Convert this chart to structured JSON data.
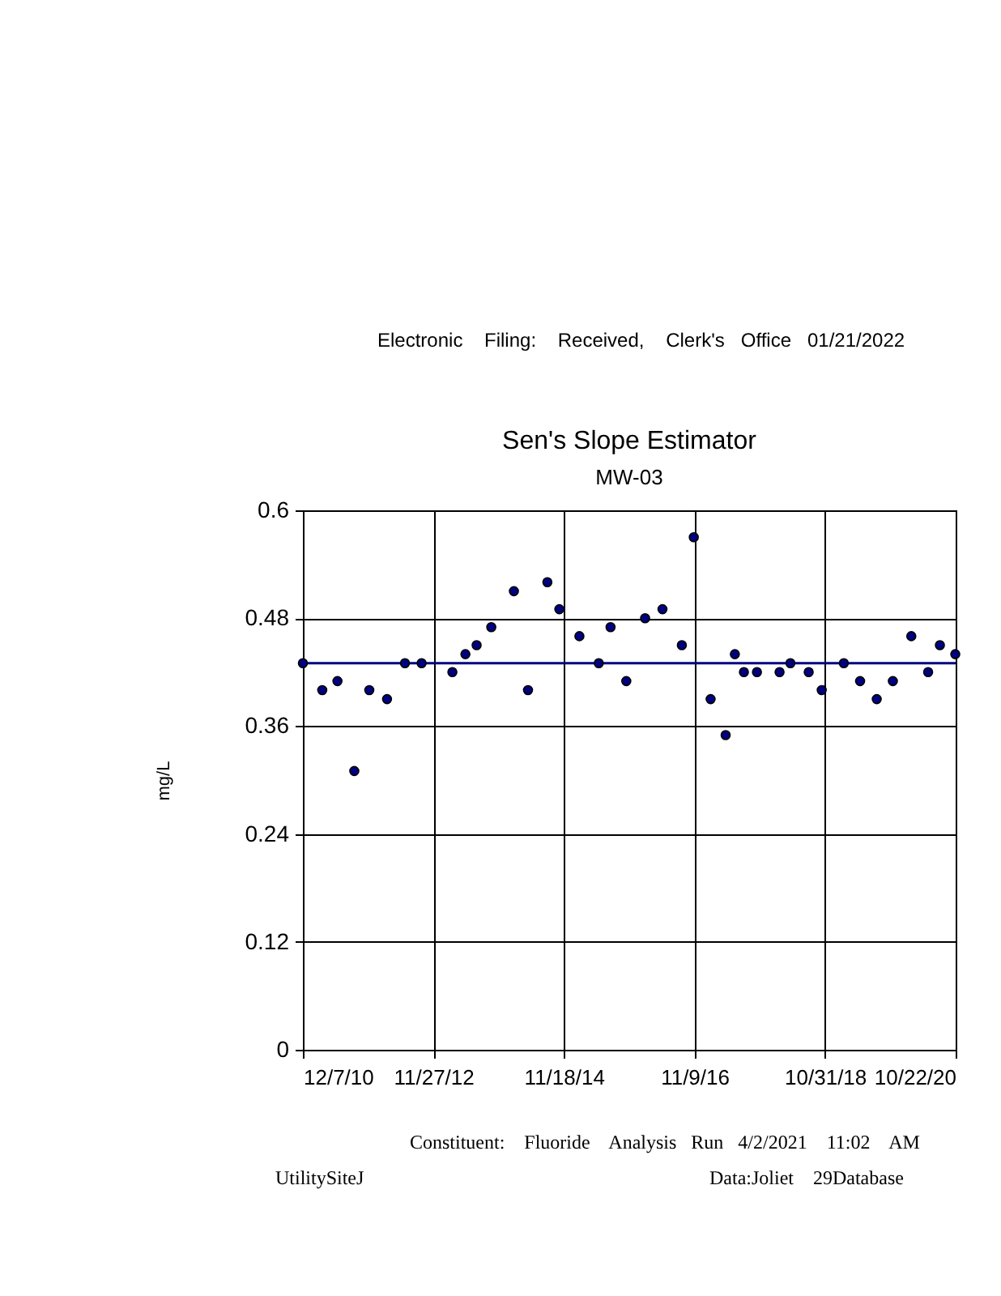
{
  "chart_data": {
    "type": "scatter",
    "title": "Sen's Slope Estimator",
    "subtitle": "MW-03",
    "ylabel": "mg/L",
    "annotations": [
      "Electronic    Filing:    Received,    Clerk's   Office   01/21/2022",
      "Constituent:    Fluoride    Analysis   Run   4/2/2021    11:02    AM",
      "UtilitySiteJ",
      "Data:Joliet    29Database"
    ],
    "xlim": [
      "2010-12-07",
      "2020-10-22"
    ],
    "xticks": [
      {
        "value": "2010-12-07",
        "label": "12/7/10"
      },
      {
        "value": "2012-11-27",
        "label": "11/27/12"
      },
      {
        "value": "2014-11-18",
        "label": "11/18/14"
      },
      {
        "value": "2016-11-09",
        "label": "11/9/16"
      },
      {
        "value": "2018-10-31",
        "label": "10/31/18"
      },
      {
        "value": "2020-10-22",
        "label": "10/22/20"
      }
    ],
    "ylim": [
      0,
      0.6
    ],
    "yticks": [
      0,
      0.12,
      0.24,
      0.36,
      0.48,
      0.6
    ],
    "grid": true,
    "series": [
      {
        "type": "scatter",
        "color": "#000080",
        "marker": "circle",
        "x": [
          "2010-12-07",
          "2011-03-24",
          "2011-06-16",
          "2011-09-17",
          "2011-12-09",
          "2012-03-16",
          "2012-06-23",
          "2012-09-23",
          "2013-03-12",
          "2013-05-23",
          "2013-07-24",
          "2013-10-13",
          "2014-02-15",
          "2014-05-04",
          "2014-08-19",
          "2014-10-24",
          "2015-02-12",
          "2015-05-30",
          "2015-08-03",
          "2015-10-29",
          "2016-02-10",
          "2016-05-16",
          "2016-08-31",
          "2016-11-05",
          "2017-02-06",
          "2017-04-30",
          "2017-06-20",
          "2017-08-09",
          "2017-10-20",
          "2018-02-22",
          "2018-04-23",
          "2018-08-02",
          "2018-10-13",
          "2019-02-12",
          "2019-05-13",
          "2019-08-13",
          "2019-11-10",
          "2020-02-20",
          "2020-05-23",
          "2020-07-27",
          "2020-10-20"
        ],
        "values": [
          0.43,
          0.4,
          0.41,
          0.31,
          0.4,
          0.39,
          0.43,
          0.43,
          0.42,
          0.44,
          0.45,
          0.47,
          0.51,
          0.4,
          0.52,
          0.49,
          0.46,
          0.43,
          0.47,
          0.41,
          0.48,
          0.49,
          0.45,
          0.57,
          0.39,
          0.35,
          0.44,
          0.42,
          0.42,
          0.42,
          0.43,
          0.42,
          0.4,
          0.43,
          0.41,
          0.39,
          0.41,
          0.46,
          0.42,
          0.45,
          0.44
        ]
      },
      {
        "type": "line",
        "color": "#000080",
        "x": [
          "2010-12-07",
          "2020-10-22"
        ],
        "values": [
          0.43,
          0.43
        ]
      }
    ]
  }
}
